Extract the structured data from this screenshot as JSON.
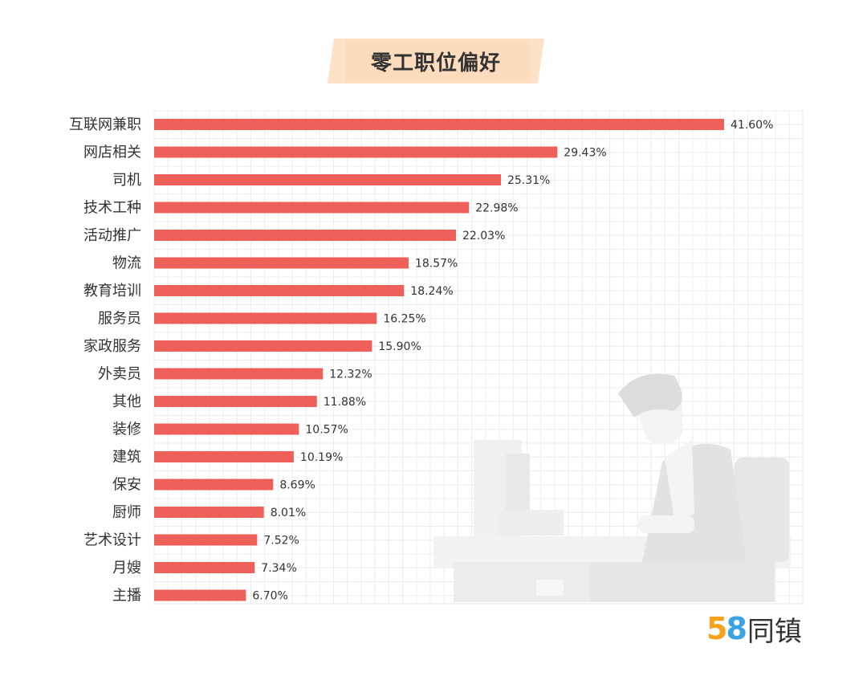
{
  "chart_data": {
    "type": "bar",
    "orientation": "horizontal",
    "title": "零工职位偏好",
    "categories": [
      "互联网兼职",
      "网店相关",
      "司机",
      "技术工种",
      "活动推广",
      "物流",
      "教育培训",
      "服务员",
      "家政服务",
      "外卖员",
      "其他",
      "装修",
      "建筑",
      "保安",
      "厨师",
      "艺术设计",
      "月嫂",
      "主播"
    ],
    "values": [
      41.6,
      29.43,
      25.31,
      22.98,
      22.03,
      18.57,
      18.24,
      16.25,
      15.9,
      12.32,
      11.88,
      10.57,
      10.19,
      8.69,
      8.01,
      7.52,
      7.34,
      6.7
    ],
    "value_labels": [
      "41.60%",
      "29.43%",
      "25.31%",
      "22.98%",
      "22.03%",
      "18.57%",
      "18.24%",
      "16.25%",
      "15.90%",
      "12.32%",
      "11.88%",
      "10.57%",
      "10.19%",
      "8.69%",
      "8.01%",
      "7.52%",
      "7.34%",
      "6.70%"
    ],
    "unit": "%",
    "xlim": [
      0,
      41.6
    ],
    "grid": true,
    "bar_color": "#f0605a",
    "title_banner_color": "#fde2c8"
  },
  "brand": {
    "digit_five": "5",
    "digit_eight": "8",
    "name": "同镇",
    "color_five": "#f3a21b",
    "color_eight": "#3aa3e3"
  }
}
